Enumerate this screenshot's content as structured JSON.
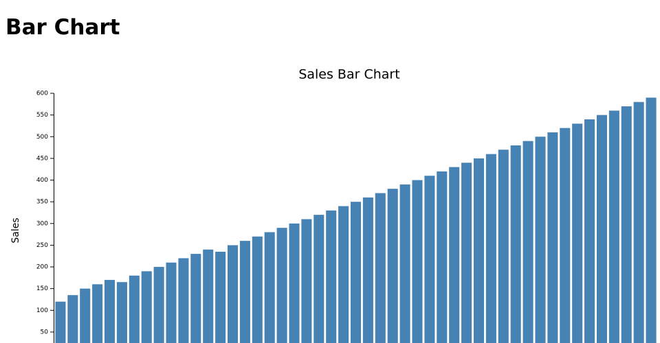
{
  "header": {
    "title": "Bar Chart"
  },
  "chart_data": {
    "type": "bar",
    "title": "Sales Bar Chart",
    "y_label": "Sales",
    "categories": [
      null,
      null,
      null,
      null,
      null,
      null,
      null,
      null,
      null,
      null,
      null,
      null,
      null,
      null,
      null,
      null,
      null,
      null,
      null,
      null,
      null,
      null,
      null,
      null,
      null,
      null,
      null,
      null,
      null,
      null,
      null,
      null,
      null,
      null,
      null,
      null,
      null,
      null,
      null,
      null,
      null,
      null,
      null,
      null,
      null,
      null,
      null,
      null,
      null
    ],
    "values": [
      120,
      135,
      150,
      160,
      170,
      165,
      180,
      190,
      200,
      210,
      220,
      230,
      240,
      235,
      250,
      260,
      270,
      280,
      290,
      300,
      310,
      320,
      330,
      340,
      350,
      360,
      370,
      380,
      390,
      400,
      410,
      420,
      430,
      440,
      450,
      460,
      470,
      480,
      490,
      500,
      510,
      520,
      530,
      540,
      550,
      560,
      570,
      580,
      590
    ],
    "color": "#4682b4",
    "ylim": [
      0,
      600
    ],
    "yticks": [
      50,
      100,
      150,
      200,
      250,
      300,
      350,
      400,
      450,
      500,
      550,
      600
    ],
    "grid": false
  }
}
